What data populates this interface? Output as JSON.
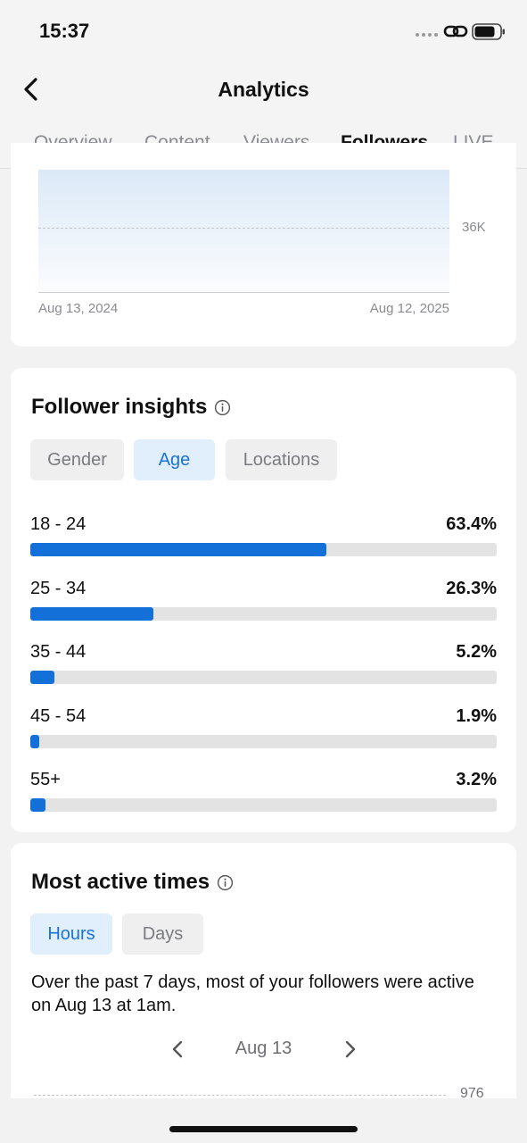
{
  "status_bar": {
    "time": "15:37"
  },
  "header": {
    "title": "Analytics",
    "tabs": [
      {
        "label": "Overview",
        "active": false
      },
      {
        "label": "Content",
        "active": false
      },
      {
        "label": "Viewers",
        "active": false
      },
      {
        "label": "Followers",
        "active": true
      },
      {
        "label": "LIVE",
        "active": false
      }
    ]
  },
  "follower_chart": {
    "y_label": "36K",
    "x_start": "Aug 13, 2024",
    "x_end": "Aug 12, 2025"
  },
  "insights": {
    "title": "Follower insights",
    "filters": [
      {
        "label": "Gender",
        "active": false
      },
      {
        "label": "Age",
        "active": true
      },
      {
        "label": "Locations",
        "active": false
      }
    ],
    "age_groups": [
      {
        "label": "18 - 24",
        "value": "63.4%",
        "fraction": 0.634
      },
      {
        "label": "25 - 34",
        "value": "26.3%",
        "fraction": 0.263
      },
      {
        "label": "35 - 44",
        "value": "5.2%",
        "fraction": 0.052
      },
      {
        "label": "45 - 54",
        "value": "1.9%",
        "fraction": 0.019
      },
      {
        "label": "55+",
        "value": "3.2%",
        "fraction": 0.032
      }
    ]
  },
  "active_times": {
    "title": "Most active times",
    "filters": [
      {
        "label": "Hours",
        "active": true
      },
      {
        "label": "Days",
        "active": false
      }
    ],
    "description": "Over the past 7 days, most of your followers were active on Aug 13 at 1am.",
    "date": "Aug 13",
    "y_label": "976"
  },
  "colors": {
    "accent": "#1270d8",
    "chip_active_bg": "#e1eefb",
    "track": "#e3e3e4"
  }
}
